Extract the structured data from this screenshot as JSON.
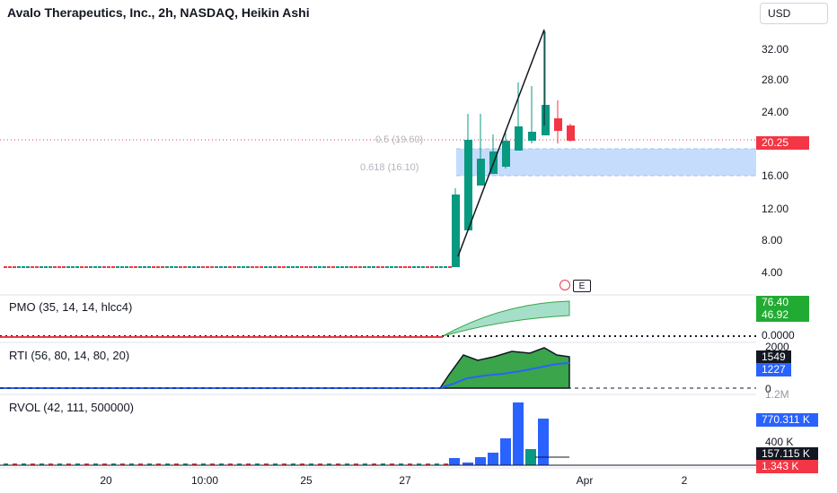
{
  "header": {
    "title": "Avalo Therapeutics, Inc., 2h, NASDAQ, Heikin Ashi",
    "currency": "USD"
  },
  "price_axis": {
    "ticks": [
      "32.00",
      "28.00",
      "24.00",
      "20.00",
      "16.00",
      "12.00",
      "8.00",
      "4.00"
    ],
    "last_price": "20.25"
  },
  "fib": {
    "level_05": "0.5 (19.60)",
    "level_0618": "0.618 (16.10)"
  },
  "e_marker": "E",
  "pmo": {
    "label": "PMO (35, 14, 14, hlcc4)",
    "value1": "76.40",
    "value2": "46.92",
    "zero_tick": "0.0000"
  },
  "rti": {
    "label": "RTI (56, 80, 14, 80, 20)",
    "top_tick": "2000",
    "value1": "1549",
    "value2": "1227",
    "zero_tick": "0"
  },
  "rvol": {
    "label": "RVOL (42, 111, 500000)",
    "top_tick": "1.2M",
    "value1": "770.311 K",
    "mid_tick": "400 K",
    "value2": "157.115 K",
    "value3": "1.343 K"
  },
  "time_axis": {
    "ticks": [
      "20",
      "10:00",
      "25",
      "27",
      "Apr",
      "2"
    ]
  },
  "colors": {
    "up": "#089981",
    "down": "#f23645",
    "fib_fill": "#bbd6fb",
    "pmo_fill": "#a5dfc9",
    "rti_fill": "#3aa54a",
    "rti_line": "#2962ff",
    "rvol_bar": "#2962ff"
  }
}
